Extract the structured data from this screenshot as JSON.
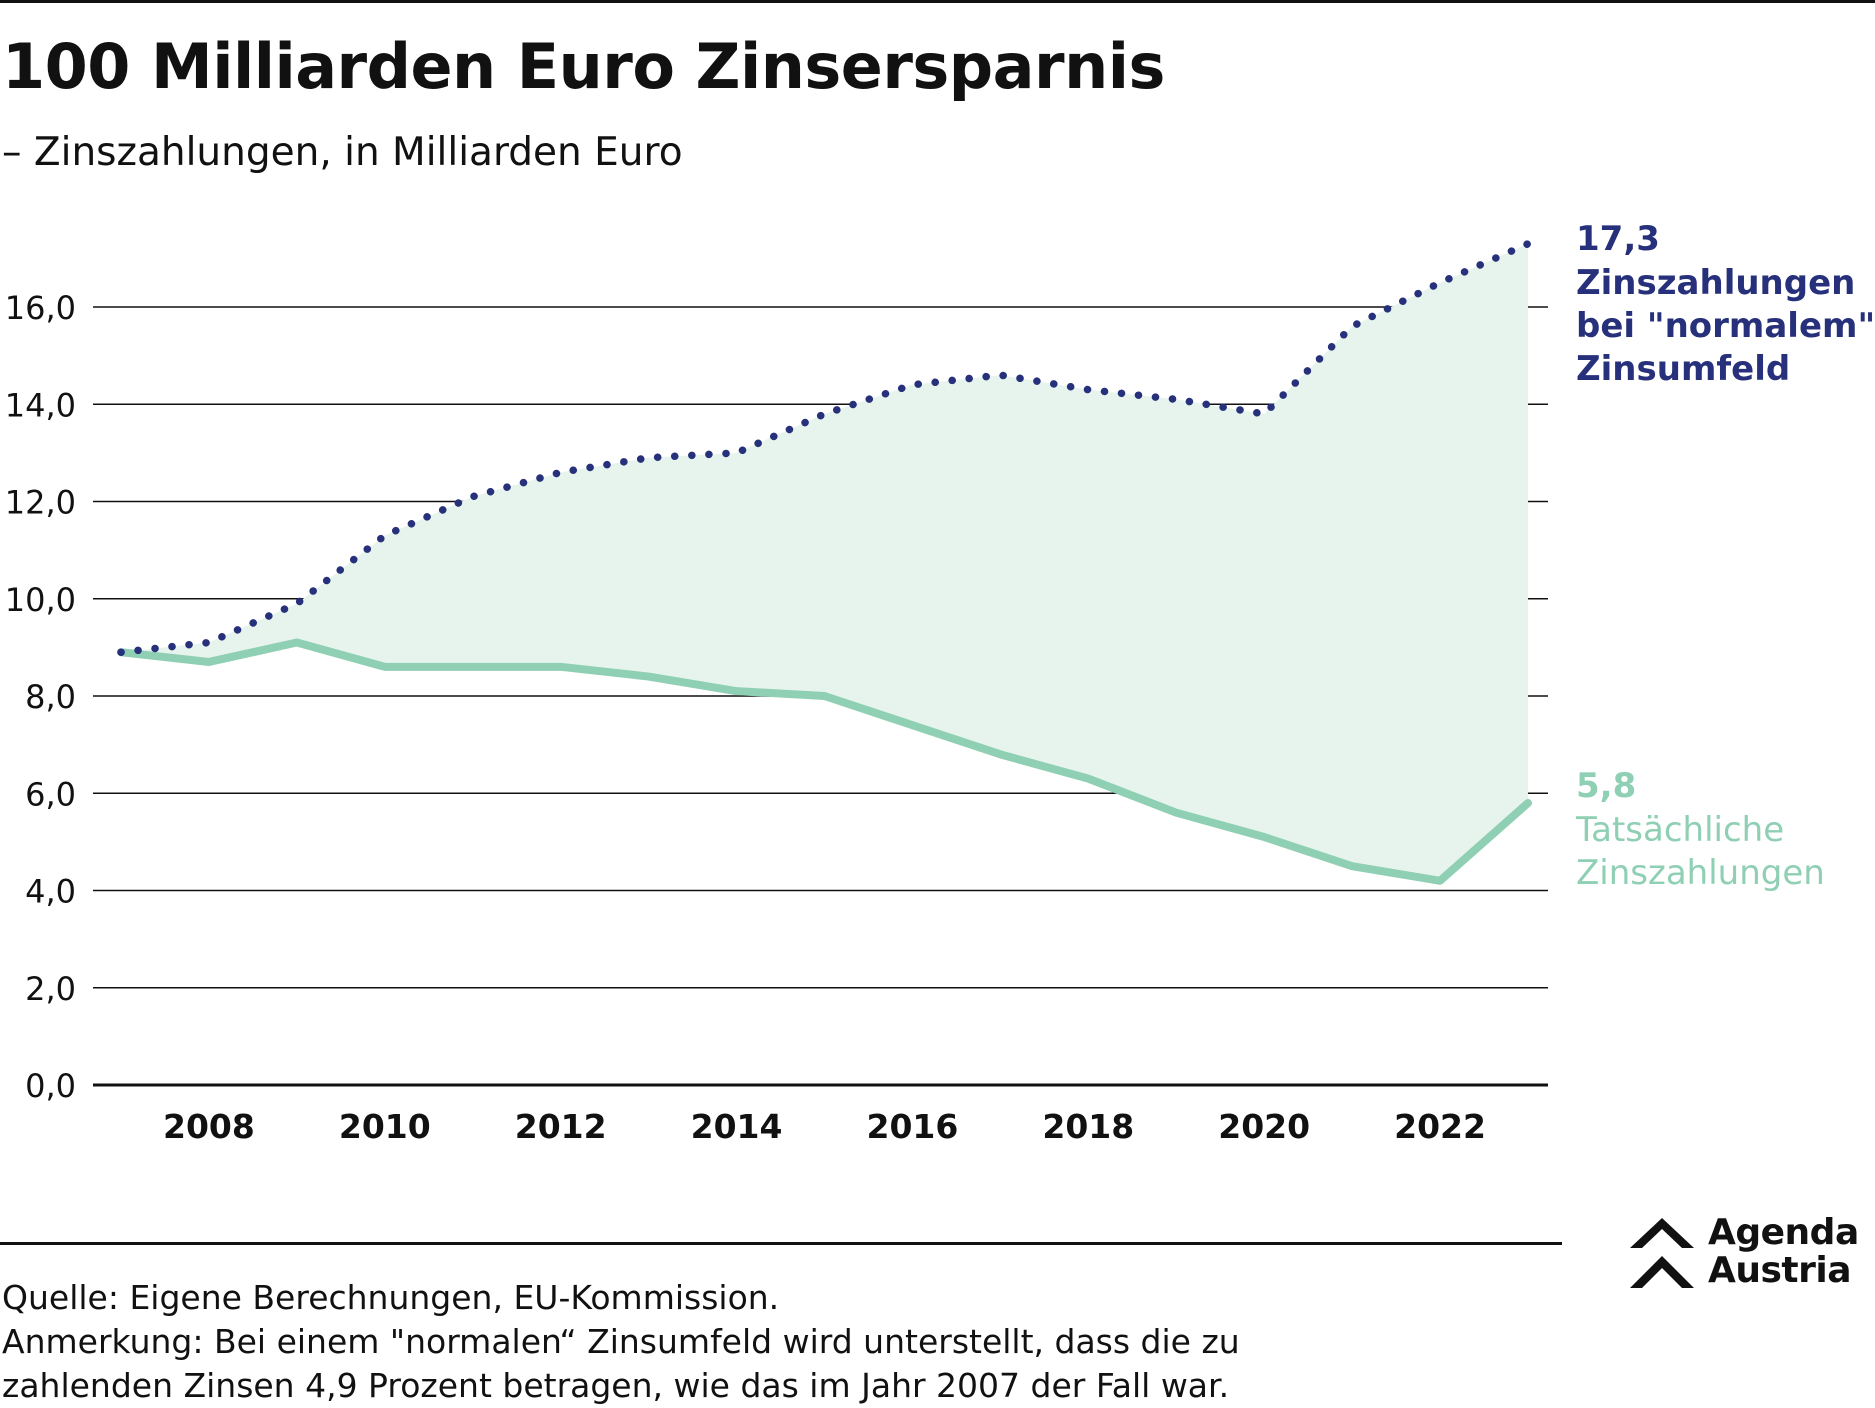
{
  "header": {
    "title": "100 Milliarden Euro Zinsersparnis",
    "subtitle": "– Zinszahlungen, in Milliarden Euro"
  },
  "chart_data": {
    "type": "line",
    "title": "100 Milliarden Euro Zinsersparnis",
    "subtitle": "– Zinszahlungen, in Milliarden Euro",
    "xlabel": "",
    "ylabel": "",
    "x": [
      2007,
      2008,
      2009,
      2010,
      2011,
      2012,
      2013,
      2014,
      2015,
      2016,
      2017,
      2018,
      2019,
      2020,
      2021,
      2022,
      2023
    ],
    "x_ticks": [
      "2008",
      "2010",
      "2012",
      "2014",
      "2016",
      "2018",
      "2020",
      "2022"
    ],
    "y_ticks": [
      "0,0",
      "2,0",
      "4,0",
      "6,0",
      "8,0",
      "10,0",
      "12,0",
      "14,0",
      "16,0"
    ],
    "ylim": [
      0,
      16
    ],
    "xlim": [
      2007,
      2023
    ],
    "grid": "horizontal",
    "fill_between_series": true,
    "series": [
      {
        "name": "Zinszahlungen bei \"normalem\" Zinsumfeld",
        "label_lines": [
          "Zinszahlungen",
          "bei \"normalem\"",
          "Zinsumfeld"
        ],
        "end_label": "17,3",
        "style": "dotted",
        "color": "#27307a",
        "values": [
          8.9,
          9.1,
          9.9,
          11.3,
          12.1,
          12.6,
          12.9,
          13.0,
          13.8,
          14.4,
          14.6,
          14.3,
          14.1,
          13.8,
          15.6,
          16.5,
          17.3
        ]
      },
      {
        "name": "Tatsächliche Zinszahlungen",
        "label_lines": [
          "Tatsächliche",
          "Zinszahlungen"
        ],
        "end_label": "5,8",
        "style": "solid",
        "color": "#8fcfb3",
        "values": [
          8.9,
          8.7,
          9.1,
          8.6,
          8.6,
          8.6,
          8.4,
          8.1,
          8.0,
          7.4,
          6.8,
          6.3,
          5.6,
          5.1,
          4.5,
          4.2,
          5.8
        ]
      }
    ],
    "fill_color": "#e6f4ed"
  },
  "footer": {
    "source": "Quelle: Eigene Berechnungen, EU-Kommission.",
    "note_line1": "Anmerkung: Bei einem \"normalen“ Zinsumfeld wird unterstellt, dass die zu",
    "note_line2": "zahlenden Zinsen 4,9 Prozent betragen, wie das im Jahr 2007 der Fall war."
  },
  "logo": {
    "line1": "Agenda",
    "line2": "Austria",
    "icon": "double-chevron-up-icon"
  }
}
